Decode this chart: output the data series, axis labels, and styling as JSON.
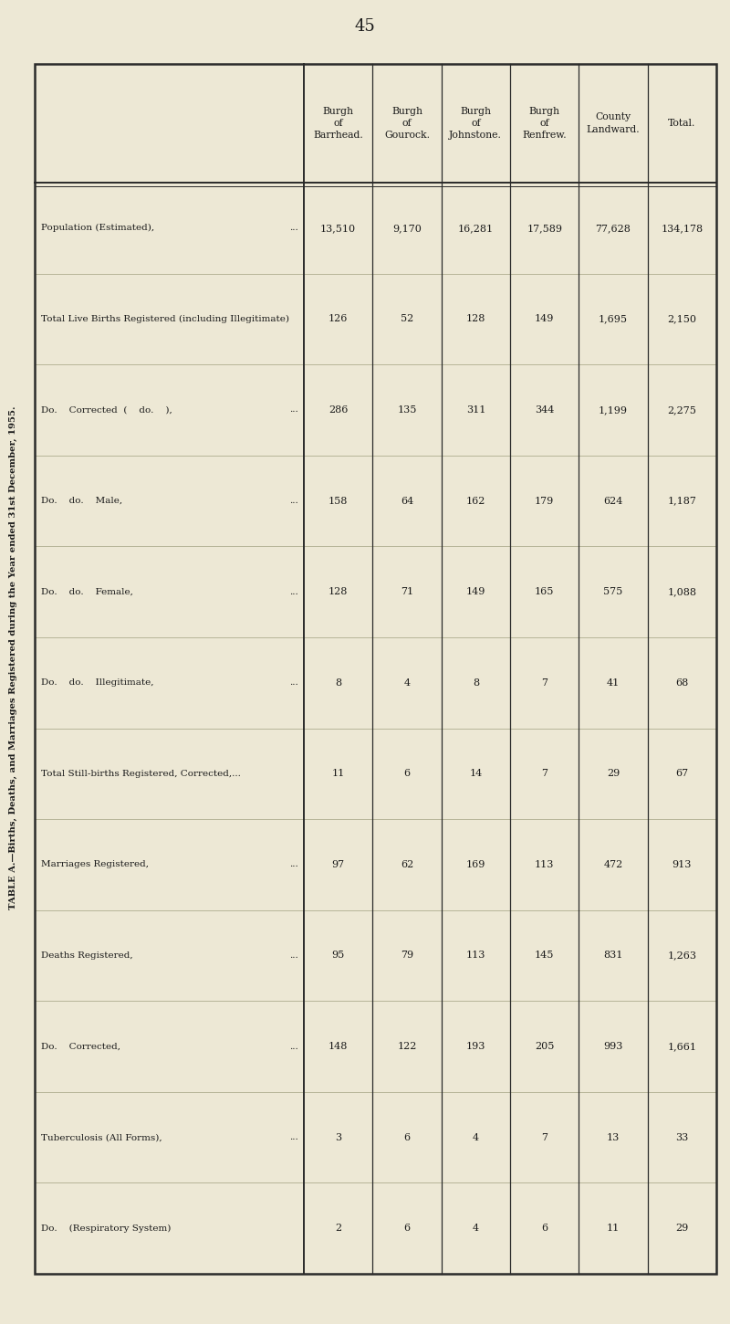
{
  "page_number": "45",
  "bg_color": "#ede8d5",
  "title": "TABLE A.—Births, Deaths, and Marriages Registered during the Year ended 31st December, 1955.",
  "col_headers": [
    "Burgh\nof\nBarrhead.",
    "Burgh\nof\nGourock.",
    "Burgh\nof\nJohnstone.",
    "Burgh\nof\nRenfrew.",
    "County\nLandward.",
    "Total."
  ],
  "row_labels": [
    [
      "Population (Estimated),",
      "..."
    ],
    [
      "Total Live Births Registered (including Illegitimate)",
      ""
    ],
    [
      "Do.    Corrected  (    do.    ),",
      "..."
    ],
    [
      "Do.    do.    Male,",
      "..."
    ],
    [
      "Do.    do.    Female,",
      "..."
    ],
    [
      "Do.    do.    Illegitimate,",
      "..."
    ],
    [
      "Total Still-births Registered, Corrected,...",
      ""
    ],
    [
      "Marriages Registered,",
      "..."
    ],
    [
      "Deaths Registered,",
      "..."
    ],
    [
      "Do.    Corrected,",
      "..."
    ],
    [
      "Tuberculosis (All Forms),",
      "..."
    ],
    [
      "Do.    (Respiratory System)",
      ""
    ]
  ],
  "data": [
    [
      "13,510",
      "9,170",
      "16,281",
      "17,589",
      "77,628",
      "134,178"
    ],
    [
      "126",
      "52",
      "128",
      "149",
      "1,695",
      "2,150"
    ],
    [
      "286",
      "135",
      "311",
      "344",
      "1,199",
      "2,275"
    ],
    [
      "158",
      "64",
      "162",
      "179",
      "624",
      "1,187"
    ],
    [
      "128",
      "71",
      "149",
      "165",
      "575",
      "1,088"
    ],
    [
      "8",
      "4",
      "8",
      "7",
      "41",
      "68"
    ],
    [
      "11",
      "6",
      "14",
      "7",
      "29",
      "67"
    ],
    [
      "97",
      "62",
      "169",
      "113",
      "472",
      "913"
    ],
    [
      "95",
      "79",
      "113",
      "145",
      "831",
      "1,263"
    ],
    [
      "148",
      "122",
      "193",
      "205",
      "993",
      "1,661"
    ],
    [
      "3",
      "6",
      "4",
      "7",
      "13",
      "33"
    ],
    [
      "2",
      "6",
      "4",
      "6",
      "11",
      "29"
    ]
  ],
  "text_color": "#1a1a1a",
  "line_color": "#2a2a2a",
  "faint_line_color": "#999977"
}
